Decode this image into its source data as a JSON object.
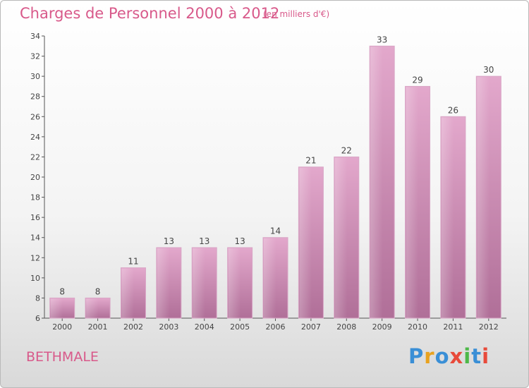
{
  "header": {
    "title": "Charges de Personnel 2000 à 2012",
    "subtitle": "(en milliers d'€)"
  },
  "footer": {
    "commune": "BETHMALE",
    "logo": [
      "P",
      "r",
      "o",
      "x",
      "i",
      "t",
      "i"
    ]
  },
  "colors": {
    "accent": "#d8598a",
    "bar": "#c98ab3",
    "logo": [
      "#3a8fd6",
      "#e8a21f",
      "#3a8fd6",
      "#e84a3a",
      "#4db848",
      "#3a8fd6",
      "#e84a3a"
    ]
  },
  "chart_data": {
    "type": "bar",
    "title": "Charges de Personnel 2000 à 2012",
    "subtitle": "(en milliers d'€)",
    "categories": [
      "2000",
      "2001",
      "2002",
      "2003",
      "2004",
      "2005",
      "2006",
      "2007",
      "2008",
      "2009",
      "2010",
      "2011",
      "2012"
    ],
    "values": [
      8,
      8,
      11,
      13,
      13,
      13,
      14,
      21,
      22,
      33,
      29,
      26,
      30
    ],
    "ylim": [
      6,
      34
    ],
    "yticks": [
      6,
      8,
      10,
      12,
      14,
      16,
      18,
      20,
      22,
      24,
      26,
      28,
      30,
      32,
      34
    ],
    "grid": false,
    "legend": "none"
  }
}
